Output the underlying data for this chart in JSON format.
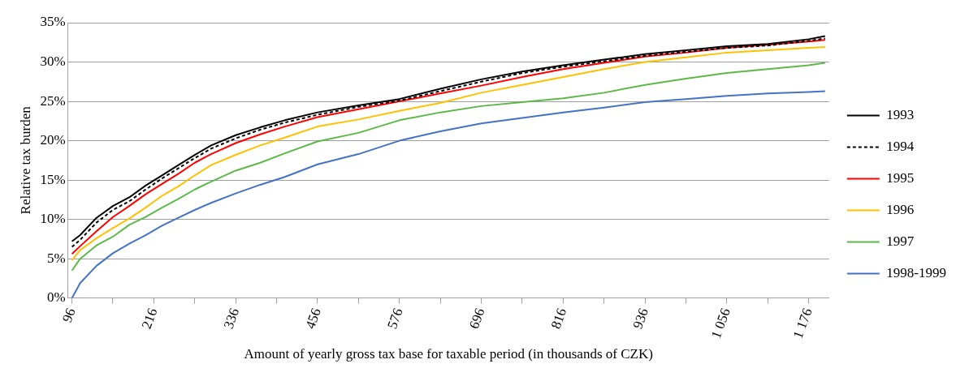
{
  "chart_data": {
    "type": "line",
    "xlabel": "Amount of yearly gross tax base for taxable period (in thousands of CZK)",
    "ylabel": "Relative tax burden",
    "x": [
      96,
      108,
      132,
      156,
      180,
      204,
      228,
      252,
      276,
      300,
      336,
      372,
      408,
      456,
      516,
      576,
      636,
      696,
      756,
      816,
      876,
      936,
      996,
      1056,
      1116,
      1176,
      1200
    ],
    "series": [
      {
        "name": "1993",
        "color": "#000000",
        "line_style": "solid",
        "values": [
          7.2,
          8.0,
          10.2,
          11.7,
          12.8,
          14.3,
          15.6,
          16.9,
          18.2,
          19.4,
          20.7,
          21.7,
          22.6,
          23.6,
          24.5,
          25.3,
          26.6,
          27.8,
          28.8,
          29.6,
          30.3,
          31.0,
          31.5,
          32.0,
          32.3,
          32.9,
          33.3
        ]
      },
      {
        "name": "1994",
        "color": "#000000",
        "line_style": "dashed",
        "values": [
          6.5,
          7.4,
          9.6,
          11.2,
          12.3,
          13.8,
          15.2,
          16.5,
          17.8,
          19.0,
          20.3,
          21.4,
          22.3,
          23.3,
          24.3,
          25.1,
          26.3,
          27.5,
          28.6,
          29.4,
          30.1,
          30.8,
          31.3,
          31.8,
          32.1,
          32.7,
          33.0
        ]
      },
      {
        "name": "1995",
        "color": "#ff0000",
        "line_style": "solid",
        "values": [
          5.6,
          6.6,
          8.5,
          10.3,
          11.7,
          13.2,
          14.5,
          15.8,
          17.2,
          18.3,
          19.7,
          20.8,
          21.8,
          23.0,
          24.0,
          25.0,
          26.0,
          27.0,
          28.1,
          29.1,
          29.9,
          30.7,
          31.2,
          31.8,
          32.2,
          32.6,
          32.8
        ]
      },
      {
        "name": "1996",
        "color": "#ffc000",
        "line_style": "solid",
        "values": [
          4.8,
          6.1,
          7.6,
          8.9,
          10.1,
          11.5,
          13.0,
          14.2,
          15.6,
          16.9,
          18.2,
          19.4,
          20.4,
          21.8,
          22.7,
          23.8,
          24.8,
          26.1,
          27.1,
          28.1,
          29.1,
          30.0,
          30.6,
          31.2,
          31.5,
          31.8,
          31.9
        ]
      },
      {
        "name": "1997",
        "color": "#5cb947",
        "line_style": "solid",
        "values": [
          3.5,
          5.0,
          6.7,
          7.8,
          9.3,
          10.3,
          11.5,
          12.6,
          13.8,
          14.8,
          16.2,
          17.2,
          18.4,
          19.9,
          21.0,
          22.6,
          23.6,
          24.4,
          24.9,
          25.4,
          26.1,
          27.1,
          27.9,
          28.6,
          29.1,
          29.6,
          29.9
        ]
      },
      {
        "name": "1998-1999",
        "color": "#4472c4",
        "line_style": "solid",
        "values": [
          0.0,
          1.9,
          4.1,
          5.7,
          6.9,
          8.0,
          9.2,
          10.2,
          11.2,
          12.1,
          13.3,
          14.4,
          15.4,
          17.0,
          18.3,
          20.0,
          21.2,
          22.2,
          22.9,
          23.6,
          24.2,
          24.9,
          25.3,
          25.7,
          26.0,
          26.2,
          26.3
        ]
      }
    ],
    "xlim": [
      90,
      1206
    ],
    "xticks": [
      96,
      {
        "value": 156,
        "label": null
      },
      216,
      {
        "value": 276,
        "label": null
      },
      336,
      {
        "value": 396,
        "label": null
      },
      456,
      {
        "value": 516,
        "label": null
      },
      576,
      {
        "value": 636,
        "label": null
      },
      696,
      {
        "value": 756,
        "label": null
      },
      816,
      {
        "value": 876,
        "label": null
      },
      936,
      {
        "value": 996,
        "label": null
      },
      {
        "value": 1056,
        "label": "1 056"
      },
      {
        "value": 1116,
        "label": null
      },
      {
        "value": 1176,
        "label": "1 176"
      }
    ],
    "ylim": [
      0,
      35
    ],
    "yticks": [
      {
        "value": 0,
        "label": "0%"
      },
      {
        "value": 5,
        "label": "5%"
      },
      {
        "value": 10,
        "label": "10%"
      },
      {
        "value": 15,
        "label": "15%"
      },
      {
        "value": 20,
        "label": "20%"
      },
      {
        "value": 25,
        "label": "25%"
      },
      {
        "value": 30,
        "label": "30%"
      },
      {
        "value": 35,
        "label": "35%"
      }
    ],
    "grid": "y",
    "legend": "right",
    "marker": "none"
  }
}
